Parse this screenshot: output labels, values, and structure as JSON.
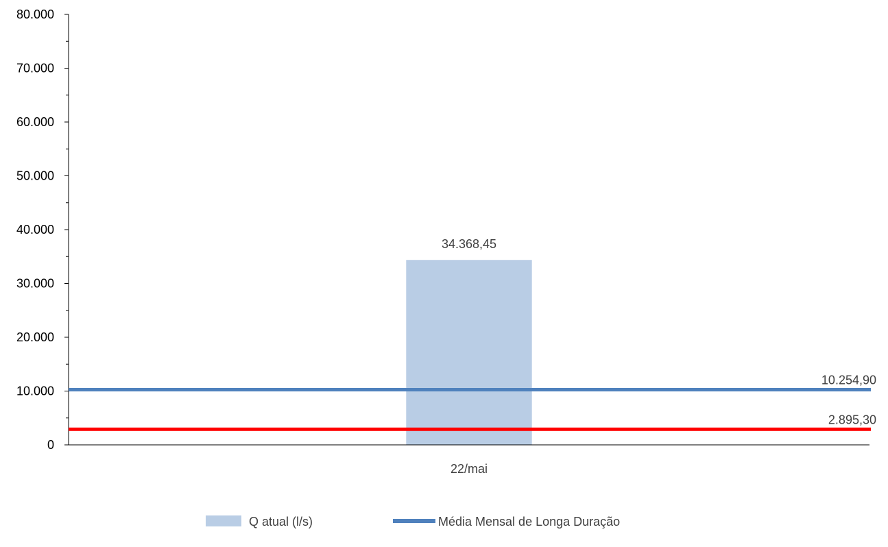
{
  "chart_data": {
    "type": "bar",
    "categories": [
      "22/mai"
    ],
    "ylim": [
      0,
      80000
    ],
    "yticks": [
      0,
      10000,
      20000,
      30000,
      40000,
      50000,
      60000,
      70000,
      80000
    ],
    "ytick_labels": [
      "0",
      "10.000",
      "20.000",
      "30.000",
      "40.000",
      "50.000",
      "60.000",
      "70.000",
      "80.000"
    ],
    "grid": false,
    "legend_position": "bottom",
    "bars": {
      "name": "Q atual (l/s)",
      "values": [
        34368.45
      ],
      "value_labels": [
        "34.368,45"
      ],
      "color": "#b9cde5"
    },
    "reference_lines": [
      {
        "name": "Média Mensal de Longa Duração",
        "value": 10254.9,
        "label": "10.254,90",
        "color": "#4f81bd"
      },
      {
        "name": "",
        "value": 2895.3,
        "label": "2.895,30",
        "color": "#ff0000"
      }
    ]
  }
}
